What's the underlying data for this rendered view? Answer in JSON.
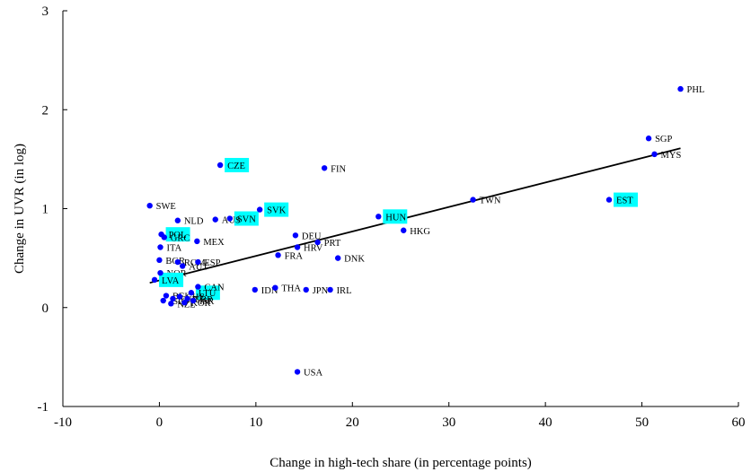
{
  "chart_data": {
    "type": "scatter",
    "xlabel": "Change in high-tech share (in percentage points)",
    "ylabel": "Change in UVR (in log)",
    "xlim": [
      -10,
      60
    ],
    "ylim": [
      -1,
      3
    ],
    "xticks": [
      "-10",
      "0",
      "10",
      "20",
      "30",
      "40",
      "50",
      "60"
    ],
    "yticks": [
      "-1",
      "0",
      "1",
      "2",
      "3"
    ],
    "grid": false,
    "point_color": "#0000ff",
    "highlight_color": "#00ffff",
    "points": [
      {
        "label": "PHL",
        "x": 54.0,
        "y": 2.21
      },
      {
        "label": "SGP",
        "x": 50.7,
        "y": 1.71
      },
      {
        "label": "MYS",
        "x": 51.3,
        "y": 1.55
      },
      {
        "label": "TWN",
        "x": 32.5,
        "y": 1.09
      },
      {
        "label": "EST",
        "x": 46.6,
        "y": 1.09,
        "highlight": true
      },
      {
        "label": "HUN",
        "x": 22.7,
        "y": 0.92,
        "highlight": true
      },
      {
        "label": "HKG",
        "x": 25.3,
        "y": 0.78
      },
      {
        "label": "FIN",
        "x": 17.1,
        "y": 1.41
      },
      {
        "label": "CZE",
        "x": 6.3,
        "y": 1.44,
        "highlight": true
      },
      {
        "label": "SVK",
        "x": 10.4,
        "y": 0.99,
        "highlight": true
      },
      {
        "label": "SVN",
        "x": 7.3,
        "y": 0.9,
        "highlight": true
      },
      {
        "label": "AUS",
        "x": 5.8,
        "y": 0.89
      },
      {
        "label": "SWE",
        "x": -1.0,
        "y": 1.03
      },
      {
        "label": "NLD",
        "x": 1.9,
        "y": 0.88
      },
      {
        "label": "POL",
        "x": 0.2,
        "y": 0.74,
        "highlight": true
      },
      {
        "label": "GRC",
        "x": 0.5,
        "y": 0.71
      },
      {
        "label": "MEX",
        "x": 3.9,
        "y": 0.67
      },
      {
        "label": "ITA",
        "x": 0.1,
        "y": 0.61
      },
      {
        "label": "DEU",
        "x": 14.1,
        "y": 0.73
      },
      {
        "label": "PRT",
        "x": 16.4,
        "y": 0.66
      },
      {
        "label": "HRV",
        "x": 14.3,
        "y": 0.61
      },
      {
        "label": "FRA",
        "x": 12.3,
        "y": 0.53
      },
      {
        "label": "DNK",
        "x": 18.5,
        "y": 0.5
      },
      {
        "label": "ESP",
        "x": 4.0,
        "y": 0.46
      },
      {
        "label": "BGR",
        "x": 0.0,
        "y": 0.48
      },
      {
        "label": "ROM",
        "x": 1.9,
        "y": 0.46
      },
      {
        "label": "AUT",
        "x": 2.4,
        "y": 0.42
      },
      {
        "label": "NOR",
        "x": 0.1,
        "y": 0.35
      },
      {
        "label": "LVA",
        "x": -0.5,
        "y": 0.28,
        "highlight": true
      },
      {
        "label": "JPN",
        "x": 15.2,
        "y": 0.18
      },
      {
        "label": "IRL",
        "x": 17.7,
        "y": 0.18
      },
      {
        "label": "IDN",
        "x": 9.9,
        "y": 0.18
      },
      {
        "label": "THA",
        "x": 12.0,
        "y": 0.2
      },
      {
        "label": "LTU",
        "x": 3.3,
        "y": 0.15,
        "highlight": true
      },
      {
        "label": "CAN",
        "x": 4.0,
        "y": 0.21
      },
      {
        "label": "BEL",
        "x": 0.7,
        "y": 0.12
      },
      {
        "label": "CHE",
        "x": 2.1,
        "y": 0.11
      },
      {
        "label": "GBR",
        "x": 2.9,
        "y": 0.09
      },
      {
        "label": "TUR",
        "x": 1.4,
        "y": 0.09
      },
      {
        "label": "ISR",
        "x": 3.5,
        "y": 0.07
      },
      {
        "label": "ISL",
        "x": 0.4,
        "y": 0.07
      },
      {
        "label": "NZL",
        "x": 1.2,
        "y": 0.04
      },
      {
        "label": "KOR",
        "x": 2.6,
        "y": 0.05
      },
      {
        "label": "USA",
        "x": 14.3,
        "y": -0.65
      }
    ],
    "trendline": {
      "x": [
        -1.0,
        54.0
      ],
      "y": [
        0.25,
        1.61
      ]
    }
  }
}
